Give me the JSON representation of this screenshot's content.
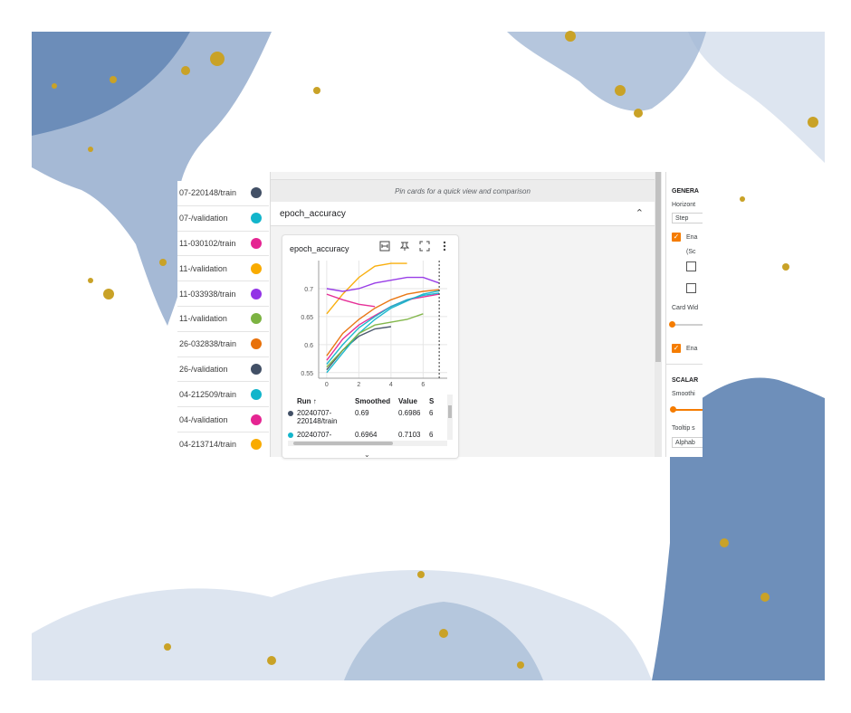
{
  "runs": [
    {
      "label": "07-220148/train",
      "color": "#425066"
    },
    {
      "label": "07-/validation",
      "color": "#12b5cb"
    },
    {
      "label": "11-030102/train",
      "color": "#e52592"
    },
    {
      "label": "11-/validation",
      "color": "#f9ab00"
    },
    {
      "label": "11-033938/train",
      "color": "#9334e6"
    },
    {
      "label": "11-/validation",
      "color": "#7cb342"
    },
    {
      "label": "26-032838/train",
      "color": "#e8710a"
    },
    {
      "label": "26-/validation",
      "color": "#425066"
    },
    {
      "label": "04-212509/train",
      "color": "#12b5cb"
    },
    {
      "label": "04-/validation",
      "color": "#e52592"
    },
    {
      "label": "04-213714/train",
      "color": "#f9ab00"
    }
  ],
  "pin_bar": {
    "text": "Pin cards for a quick view and comparison"
  },
  "group": {
    "title": "epoch_accuracy",
    "chevron_icon": "chevron-up-icon"
  },
  "card": {
    "title": "epoch_accuracy",
    "tools": [
      "fit-domain-icon",
      "pin-icon",
      "fullscreen-icon",
      "more-vert-icon"
    ],
    "expand_icon": "chevron-down-icon"
  },
  "table": {
    "headers": {
      "run": "Run ↑",
      "smoothed": "Smoothed",
      "value": "Value",
      "step": "S"
    },
    "rows": [
      {
        "run": "20240707-220148/train",
        "smoothed": "0.69",
        "value": "0.6986",
        "step": "6",
        "color": "#425066"
      },
      {
        "run": "20240707-",
        "smoothed": "0.6964",
        "value": "0.7103",
        "step": "6",
        "color": "#12b5cb"
      }
    ]
  },
  "settings": {
    "general_heading": "GENERA",
    "horizontal_label": "Horizont",
    "horizontal_value": "Step",
    "enable_label_1": "Ena",
    "sub_note": "(Sc",
    "card_width_label": "Card Wid",
    "enable_label_2": "Ena",
    "scalars_heading": "SCALAR",
    "smoothing_label": "Smoothi",
    "tooltip_label": "Tooltip s",
    "tooltip_value": "Alphab"
  },
  "chart_data": {
    "type": "line",
    "title": "epoch_accuracy",
    "xlabel": "",
    "ylabel": "",
    "x": [
      0,
      1,
      2,
      3,
      4,
      5,
      6,
      7
    ],
    "xlim": [
      -0.5,
      7.5
    ],
    "ylim": [
      0.54,
      0.75
    ],
    "xticks": [
      0,
      2,
      4,
      6
    ],
    "yticks": [
      0.55,
      0.6,
      0.65,
      0.7
    ],
    "grid": true,
    "series": [
      {
        "color": "#425066",
        "values": [
          0.555,
          0.59,
          0.615,
          0.628,
          0.632,
          null,
          null,
          null
        ]
      },
      {
        "color": "#12b5cb",
        "values": [
          0.55,
          0.585,
          0.62,
          0.645,
          0.665,
          0.678,
          0.69,
          0.696
        ]
      },
      {
        "color": "#e52592",
        "values": [
          0.572,
          0.61,
          0.635,
          0.652,
          0.668,
          0.68,
          0.685,
          0.69
        ]
      },
      {
        "color": "#f9ab00",
        "values": [
          0.655,
          0.69,
          0.72,
          0.74,
          0.745,
          0.745,
          null,
          null
        ]
      },
      {
        "color": "#9334e6",
        "values": [
          0.7,
          0.695,
          0.7,
          0.71,
          0.715,
          0.72,
          0.72,
          0.71
        ]
      },
      {
        "color": "#7cb342",
        "values": [
          0.56,
          0.59,
          0.62,
          0.635,
          0.64,
          0.645,
          0.655,
          null
        ]
      },
      {
        "color": "#e8710a",
        "values": [
          0.58,
          0.62,
          0.645,
          0.665,
          0.68,
          0.69,
          0.695,
          0.698
        ]
      },
      {
        "color": "#e52592",
        "values": [
          0.69,
          0.68,
          0.672,
          0.668,
          null,
          null,
          null,
          null
        ]
      },
      {
        "color": "#12b5cb",
        "values": [
          0.565,
          0.6,
          0.63,
          0.65,
          0.668,
          0.68,
          0.688,
          0.692
        ]
      }
    ]
  }
}
